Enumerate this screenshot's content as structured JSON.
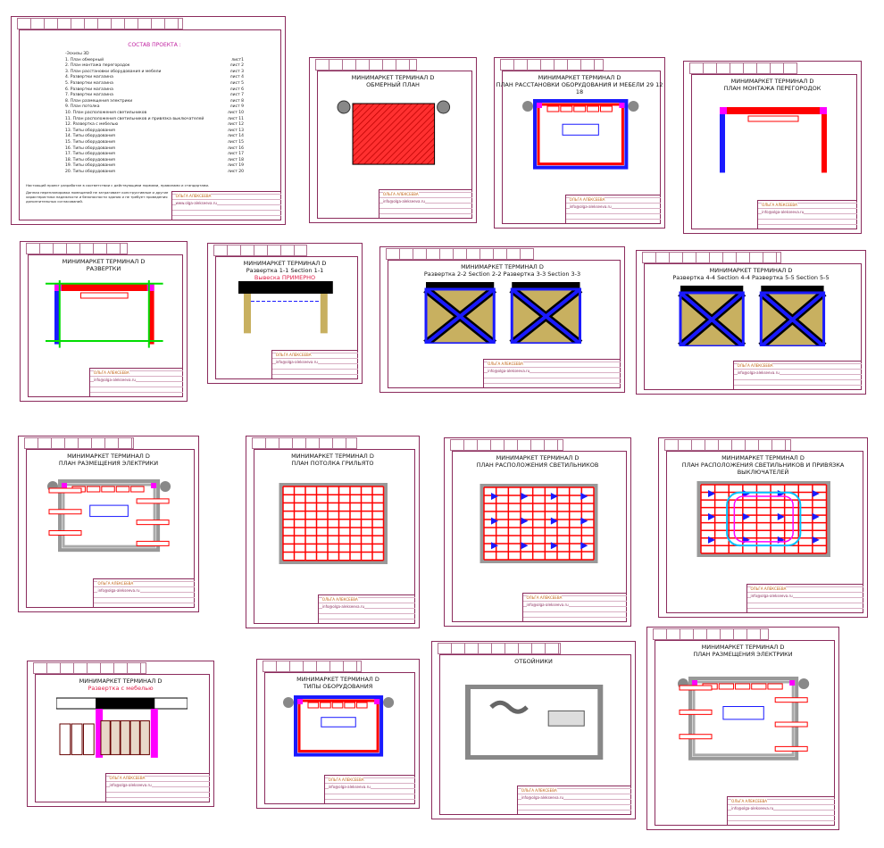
{
  "contents_sheet": {
    "title": "СОСТАВ ПРОЕКТА :",
    "items": [
      {
        "label": "-Эскизы 3D",
        "sheet": ""
      },
      {
        "label": "1. План обмерный",
        "sheet": "лист1"
      },
      {
        "label": "2. План монтажа перегородок",
        "sheet": "лист 2"
      },
      {
        "label": "3. План расстановки оборудования и мебели",
        "sheet": "лист 3"
      },
      {
        "label": "4. Развертки магазина",
        "sheet": "лист 4"
      },
      {
        "label": "5. Развертки магазина",
        "sheet": "лист 5"
      },
      {
        "label": "6. Развертки магазина",
        "sheet": "лист 6"
      },
      {
        "label": "7. Развертки магазина",
        "sheet": "лист 7"
      },
      {
        "label": "8. План размещения электрики",
        "sheet": "лист 8"
      },
      {
        "label": "9. План потолка",
        "sheet": "лист 9"
      },
      {
        "label": "10. План расположения светильников",
        "sheet": "лист 10"
      },
      {
        "label": "11. План расположения светильников и привязка выключателей",
        "sheet": "лист 11"
      },
      {
        "label": "12. Развертка с мебелью",
        "sheet": "лист 12"
      },
      {
        "label": "13. Типы оборудования",
        "sheet": "лист 13"
      },
      {
        "label": "14. Типы оборудования",
        "sheet": "лист 14"
      },
      {
        "label": "15. Типы оборудования",
        "sheet": "лист 15"
      },
      {
        "label": "16. Типы оборудования",
        "sheet": "лист 16"
      },
      {
        "label": "17. Типы оборудования",
        "sheet": "лист 17"
      },
      {
        "label": "18. Типы оборудования",
        "sheet": "лист 18"
      },
      {
        "label": "19. Типы оборудования",
        "sheet": "лист 19"
      },
      {
        "label": "20. Типы оборудования",
        "sheet": "лист 20"
      }
    ],
    "note1": "Настоящий проект разработан в соответствии с действующими нормами, правилами и стандартами.",
    "note2": "Данная перепланировка помещений не затрагивает конструктивные и другие характеристики надежности и безопасности здания и не требует проведения дополнительных согласований."
  },
  "stamp": {
    "company": "ОЛЬГА АЛЕКСЕЕВА",
    "phone": "+7 910 444 56 50",
    "web": "www.olga-alekseeva.ru",
    "email": "info@olga-alekseeva.ru"
  },
  "sheets": [
    {
      "title": "МИНИМАРКЕТ ТЕРМИНАЛ D",
      "subtitle": "ОБМЕРНЫЙ ПЛАН",
      "red": ""
    },
    {
      "title": "МИНИМАРКЕТ ТЕРМИНАЛ D",
      "subtitle": "ПЛАН РАССТАНОВКИ ОБОРУДОВАНИЯ И МЕБЕЛИ 29 12 18",
      "red": ""
    },
    {
      "title": "МИНИМАРКЕТ ТЕРМИНАЛ D",
      "subtitle": "ПЛАН МОНТАЖА ПЕРЕГОРОДОК",
      "red": ""
    },
    {
      "title": "МИНИМАРКЕТ ТЕРМИНАЛ D",
      "subtitle": "РАЗВЕРТКИ",
      "red": ""
    },
    {
      "title": "МИНИМАРКЕТ ТЕРМИНАЛ D",
      "subtitle": "Развертка 1-1 Section 1-1",
      "red": "Вывеска ПРИМЕРНО",
      "sign": "МИНИМАРКЕТ"
    },
    {
      "title": "МИНИМАРКЕТ ТЕРМИНАЛ D",
      "subtitle": "Развертка 2-2 Section 2-2   Развертка 3-3 Section 3-3",
      "red": ""
    },
    {
      "title": "МИНИМАРКЕТ ТЕРМИНАЛ D",
      "subtitle": "Развертка 4-4 Section 4-4   Развертка 5-5 Section 5-5",
      "red": ""
    },
    {
      "title": "МИНИМАРКЕТ ТЕРМИНАЛ D",
      "subtitle": "ПЛАН РАЗМЕЩЕНИЯ ЭЛЕКТРИКИ",
      "red": ""
    },
    {
      "title": "МИНИМАРКЕТ ТЕРМИНАЛ D",
      "subtitle": "ПЛАН ПОТОЛКА ГРИЛЬЯТО",
      "red": ""
    },
    {
      "title": "МИНИМАРКЕТ ТЕРМИНАЛ D",
      "subtitle": "ПЛАН РАСПОЛОЖЕНИЯ СВЕТИЛЬНИКОВ",
      "red": ""
    },
    {
      "title": "МИНИМАРКЕТ ТЕРМИНАЛ D",
      "subtitle": "ПЛАН РАСПОЛОЖЕНИЯ СВЕТИЛЬНИКОВ И ПРИВЯЗКА ВЫКЛЮЧАТЕЛЕЙ",
      "red": ""
    },
    {
      "title": "МИНИМАРКЕТ ТЕРМИНАЛ D",
      "subtitle": "",
      "red": "Развертка с мебелью"
    },
    {
      "title": "МИНИМАРКЕТ ТЕРМИНАЛ D",
      "subtitle": "ТИПЫ ОБОРУДОВАНИЯ",
      "red": ""
    },
    {
      "title": "",
      "subtitle": "ОТБОЙНИКИ",
      "red": ""
    },
    {
      "title": "МИНИМАРКЕТ ТЕРМИНАЛ D",
      "subtitle": "ПЛАН РАЗМЕЩЕНИЯ ЭЛЕКТРИКИ",
      "red": ""
    }
  ],
  "colors": {
    "frame": "#8b2b5c",
    "wall_red": "#ff0000",
    "wall_blue": "#1a1aff",
    "accent_magenta": "#ff00ff",
    "tan": "#c8b060"
  }
}
